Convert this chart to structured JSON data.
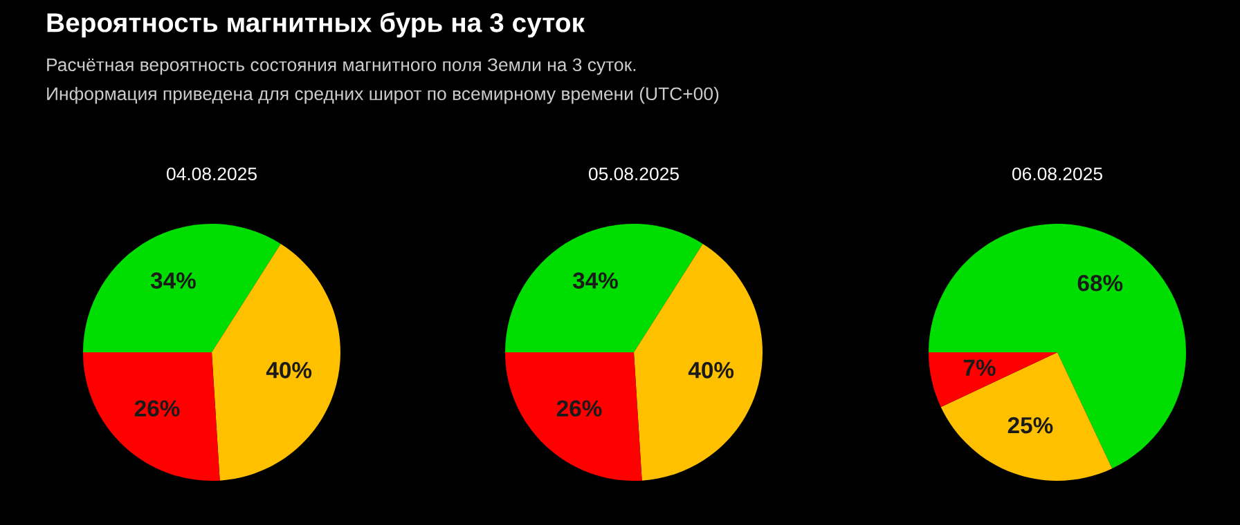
{
  "chart_data": [
    {
      "type": "pie",
      "title": "04.08.2025",
      "annotations": [
        "Вероятность магнитных бурь на 3 суток",
        "Расчётная вероятность состояния магнитного поля Земли на 3 суток.",
        "Информация приведена для средних широт по всемирному времени (UTC+00)"
      ],
      "categories": [
        null,
        null,
        null
      ],
      "values": [
        34,
        40,
        26
      ],
      "value_labels": [
        "34%",
        "40%",
        "26%"
      ],
      "colors": [
        "#00dd00",
        "#ffc000",
        "#ff0000"
      ]
    },
    {
      "type": "pie",
      "title": "05.08.2025",
      "categories": [
        null,
        null,
        null
      ],
      "values": [
        34,
        40,
        26
      ],
      "value_labels": [
        "34%",
        "40%",
        "26%"
      ],
      "colors": [
        "#00dd00",
        "#ffc000",
        "#ff0000"
      ]
    },
    {
      "type": "pie",
      "title": "06.08.2025",
      "categories": [
        null,
        null,
        null
      ],
      "values": [
        68,
        25,
        7
      ],
      "value_labels": [
        "68%",
        "25%",
        "7%"
      ],
      "colors": [
        "#00dd00",
        "#ffc000",
        "#ff0000"
      ]
    }
  ]
}
